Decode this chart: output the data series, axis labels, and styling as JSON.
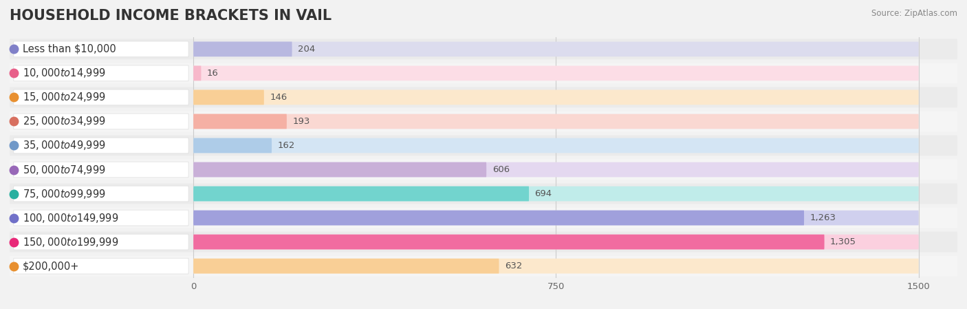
{
  "title": "HOUSEHOLD INCOME BRACKETS IN VAIL",
  "source": "Source: ZipAtlas.com",
  "categories": [
    "Less than $10,000",
    "$10,000 to $14,999",
    "$15,000 to $24,999",
    "$25,000 to $34,999",
    "$35,000 to $49,999",
    "$50,000 to $74,999",
    "$75,000 to $99,999",
    "$100,000 to $149,999",
    "$150,000 to $199,999",
    "$200,000+"
  ],
  "values": [
    204,
    16,
    146,
    193,
    162,
    606,
    694,
    1263,
    1305,
    632
  ],
  "bar_colors": [
    "#b8b8e0",
    "#f7b8ca",
    "#f9cf96",
    "#f5b0a4",
    "#aecce8",
    "#c9b0d8",
    "#72d4ce",
    "#a0a0dc",
    "#f16ca0",
    "#f9cf96"
  ],
  "track_colors": [
    "#dcdcee",
    "#fcdde6",
    "#fce8cc",
    "#fad8d2",
    "#d4e5f4",
    "#e4d8f0",
    "#c0ecea",
    "#d0d0ee",
    "#fbd0df",
    "#fce8cc"
  ],
  "dot_colors": [
    "#8080c8",
    "#e8608a",
    "#e89030",
    "#d87060",
    "#7098c8",
    "#9868b8",
    "#28b0a0",
    "#7070c8",
    "#e82878",
    "#e89030"
  ],
  "xlim": [
    0,
    1500
  ],
  "xticks": [
    0,
    750,
    1500
  ],
  "bg_color": "#f2f2f2",
  "row_bg_even": "#ebebeb",
  "row_bg_odd": "#f5f5f5",
  "title_fontsize": 15,
  "label_fontsize": 10.5,
  "value_fontsize": 9.5
}
